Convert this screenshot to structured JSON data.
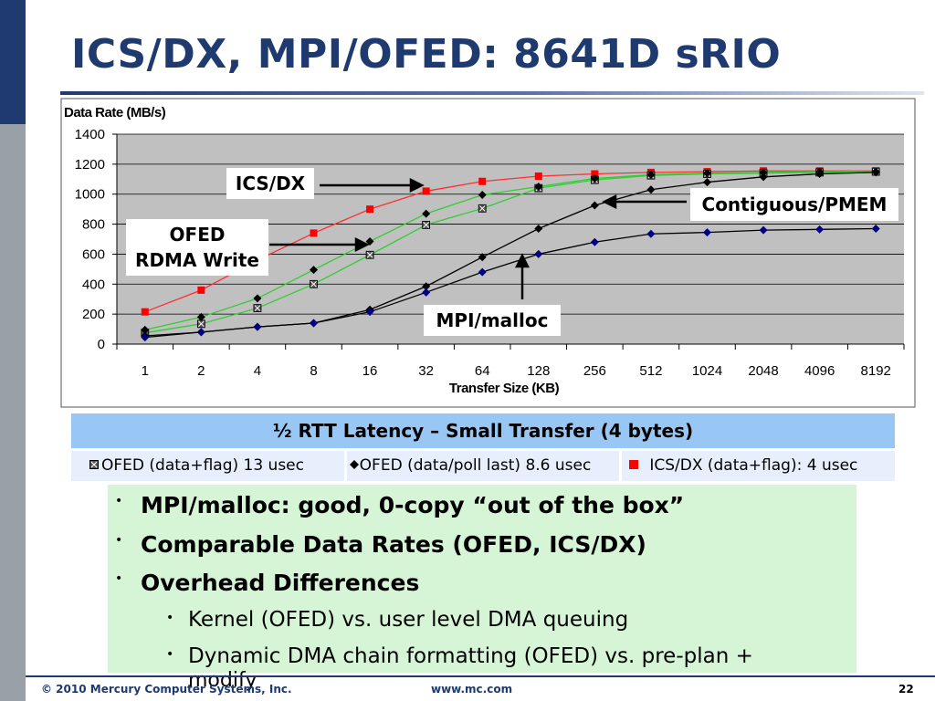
{
  "slide": {
    "title": "ICS/DX, MPI/OFED: 8641D sRIO",
    "page_number": "22",
    "copyright": "© 2010 Mercury Computer Systems, Inc.",
    "url": "www.mc.com"
  },
  "chart_data": {
    "type": "line",
    "ylabel": "Data Rate (MB/s)",
    "xlabel": "Transfer Size (KB)",
    "categories": [
      "1",
      "2",
      "4",
      "8",
      "16",
      "32",
      "64",
      "128",
      "256",
      "512",
      "1024",
      "2048",
      "4096",
      "8192"
    ],
    "ylim": [
      0,
      1400
    ],
    "yticks": [
      0,
      200,
      400,
      600,
      800,
      1000,
      1200,
      1400
    ],
    "grid": true,
    "plot_background": "#c0c0c0",
    "series": [
      {
        "name": "ICS/DX (data+flag)",
        "color": "#ff3030",
        "marker": "square-red",
        "values": [
          215,
          360,
          560,
          740,
          900,
          1020,
          1085,
          1120,
          1135,
          1145,
          1150,
          1155,
          1155,
          1155
        ]
      },
      {
        "name": "OFED (data+flag)",
        "color": "#33cc33",
        "marker": "square-x",
        "values": [
          75,
          135,
          240,
          400,
          595,
          795,
          905,
          1040,
          1095,
          1125,
          1135,
          1140,
          1145,
          1150
        ]
      },
      {
        "name": "OFED (data/poll last)",
        "color": "#33cc33",
        "marker": "diamond-black",
        "values": [
          95,
          180,
          305,
          495,
          685,
          870,
          995,
          1050,
          1105,
          1130,
          1140,
          1145,
          1150,
          1150
        ]
      },
      {
        "name": "Contiguous/PMEM",
        "color": "#000000",
        "marker": "diamond-black",
        "values": [
          55,
          80,
          115,
          140,
          230,
          385,
          580,
          770,
          925,
          1030,
          1080,
          1115,
          1135,
          1145
        ]
      },
      {
        "name": "MPI/malloc",
        "color": "#000000",
        "marker": "diamond-navy",
        "values": [
          45,
          80,
          115,
          140,
          215,
          345,
          480,
          600,
          680,
          735,
          745,
          760,
          765,
          770
        ]
      }
    ],
    "annotations": [
      "ICS/DX",
      "OFED RDMA Write",
      "Contiguous/PMEM",
      "MPI/malloc"
    ]
  },
  "callouts": {
    "icsdx": "ICS/DX",
    "ofed_line1": "OFED",
    "ofed_line2": "RDMA Write",
    "contig": "Contiguous/PMEM",
    "mpi": "MPI/malloc"
  },
  "latency": {
    "title": "½ RTT Latency – Small Transfer (4 bytes)",
    "cells": [
      {
        "label": "OFED (data+flag) 13 usec"
      },
      {
        "label": "OFED (data/poll last) 8.6 usec"
      },
      {
        "label": "ICS/DX (data+flag): 4 usec"
      }
    ]
  },
  "bullets": {
    "level1": [
      "MPI/malloc: good, 0-copy “out of the box”",
      "Comparable Data Rates (OFED, ICS/DX)",
      "Overhead Differences"
    ],
    "level2": [
      "Kernel (OFED) vs. user level DMA queuing",
      "Dynamic DMA chain formatting (OFED) vs. pre-plan +",
      "modify"
    ]
  }
}
